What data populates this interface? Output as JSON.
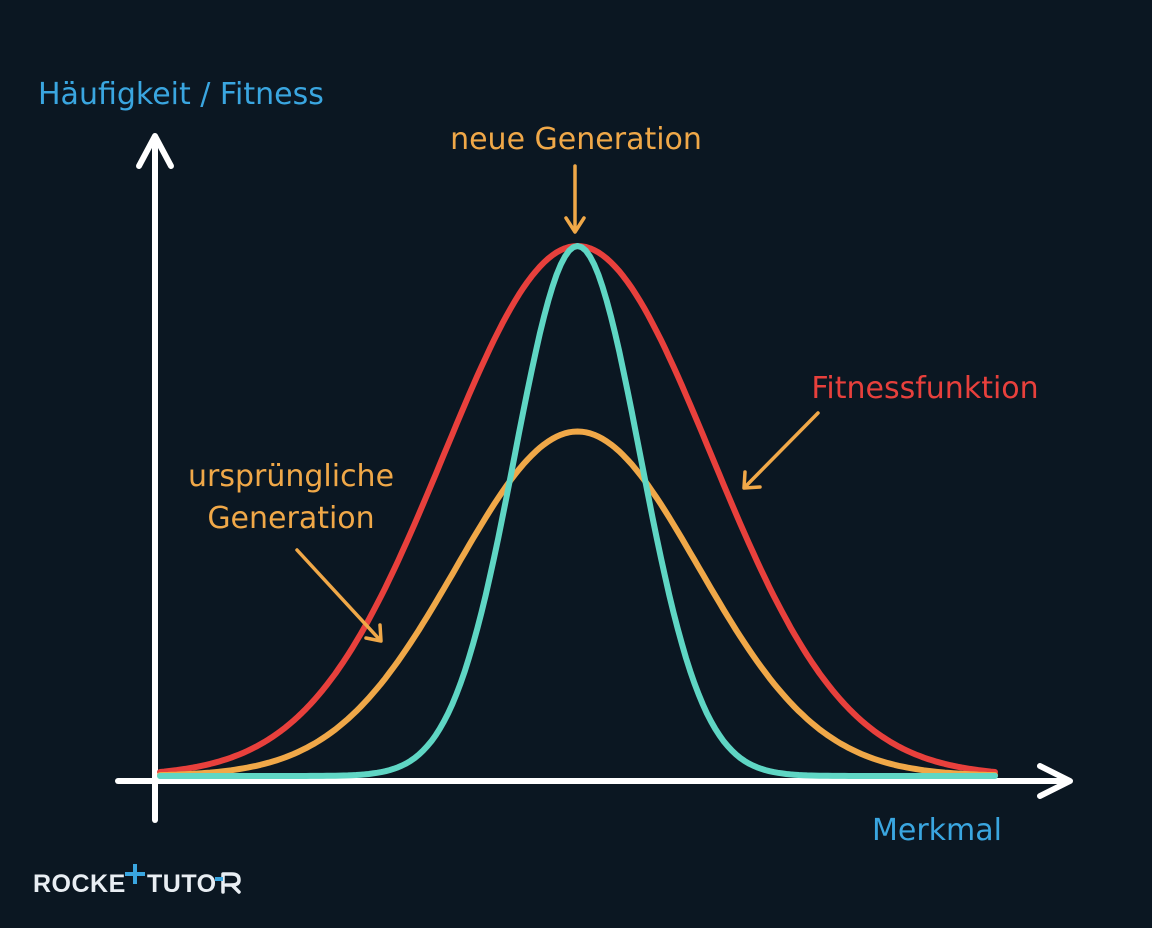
{
  "axes": {
    "y_label": "Häufigkeit / Fitness",
    "x_label": "Merkmal"
  },
  "labels": {
    "new_generation": "neue Generation",
    "fitness_function": "Fitnessfunktion",
    "original_generation_line1": "ursprüngliche",
    "original_generation_line2": "Generation"
  },
  "curves": [
    {
      "name": "fitness-function-curve",
      "color": "#e8403c",
      "mean": 0.5,
      "sd": 0.16,
      "peak": 1.0
    },
    {
      "name": "original-generation-curve",
      "color": "#f0a848",
      "mean": 0.5,
      "sd": 0.145,
      "peak": 0.65
    },
    {
      "name": "new-generation-curve",
      "color": "#5fd6c4",
      "mean": 0.5,
      "sd": 0.075,
      "peak": 1.0
    }
  ],
  "brand": {
    "left": "ROCKE",
    "right": "TUTO",
    "accent_color": "#3aa6e0"
  }
}
